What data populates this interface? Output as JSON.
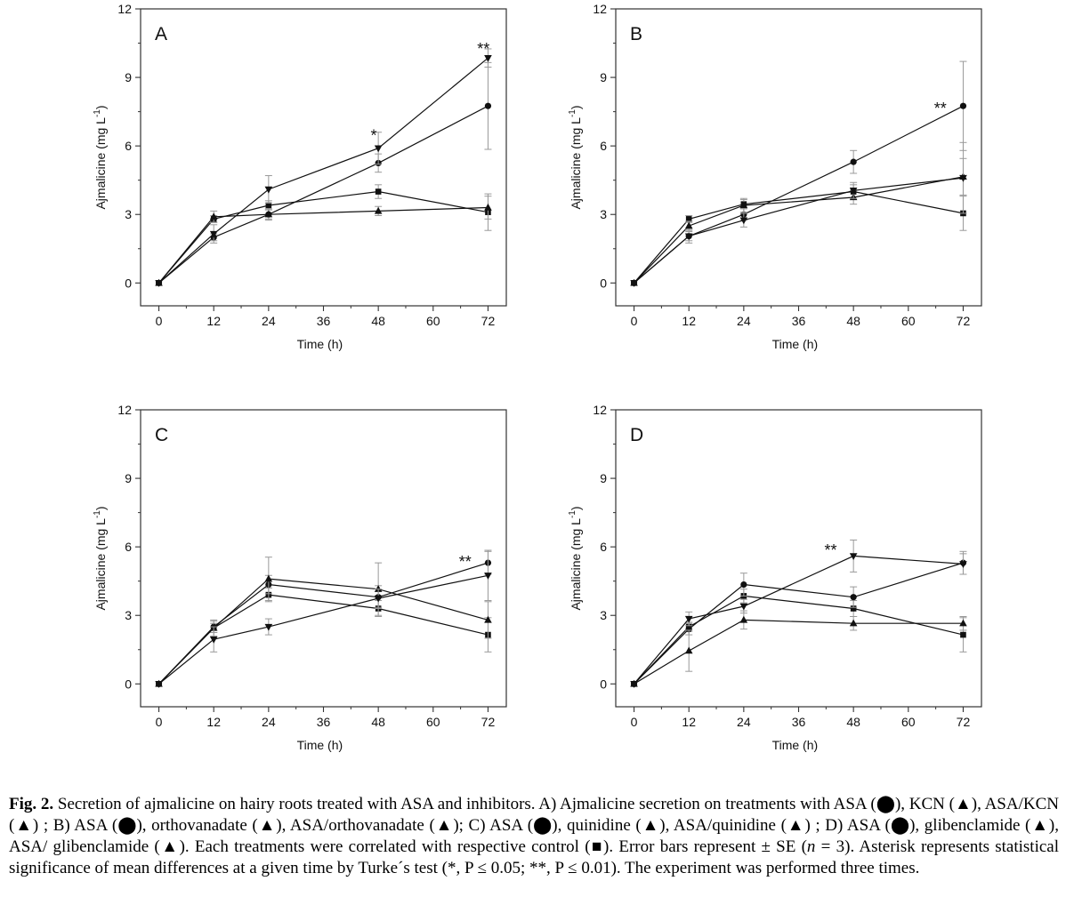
{
  "figure": {
    "label": "Fig. 2.",
    "caption_parts": [
      " Secretion of ajmalicine on hairy roots treated with ASA and inhibitors. A) Ajmalicine secretion on treatments with ASA (",
      "), KCN (",
      "), ASA/KCN (",
      ") ; B) ASA (",
      "), orthovanadate (",
      "), ASA/orthovanadate (",
      "); C) ASA (",
      "), quinidine (",
      "), ASA/quinidine (",
      ") ; D) ASA (",
      "), glibenclamide (",
      "), ASA/ glibenclamide (",
      "). Each treatments were correlated with respective control (",
      "). Error bars represent ± SE (",
      " = 3). Asterisk represents statistical significance of mean differences at a given time by Turke´s test (*, P ≤ 0.05; **, P ≤ 0.01). The experiment was performed three times."
    ],
    "caption_n": "n",
    "symbols": {
      "circle": "⬤",
      "triangle": "▲",
      "square": "■"
    }
  },
  "chart_data": [
    {
      "type": "line",
      "panel": "A",
      "xlabel": "Time (h)",
      "ylabel": "Ajmalicine (mg L-1)",
      "xlim": [
        -4,
        76
      ],
      "ylim": [
        -1,
        12
      ],
      "xticks": [
        0,
        12,
        24,
        36,
        48,
        60,
        72
      ],
      "yticks": [
        0,
        3,
        6,
        9,
        12
      ],
      "x": [
        0,
        12,
        24,
        48,
        72
      ],
      "series": [
        {
          "name": "control",
          "marker": "square",
          "values": [
            0,
            2.8,
            3.4,
            4.0,
            3.1
          ],
          "errors": [
            0,
            0.15,
            0.2,
            0.3,
            0.8
          ]
        },
        {
          "name": "ASA",
          "marker": "circle",
          "values": [
            0,
            2.0,
            3.0,
            5.25,
            7.75
          ],
          "errors": [
            0,
            0.15,
            0.25,
            0.4,
            1.9
          ]
        },
        {
          "name": "KCN",
          "marker": "triangle-up",
          "values": [
            0,
            2.9,
            3.0,
            3.15,
            3.3
          ],
          "errors": [
            0,
            0.25,
            0.2,
            0.2,
            0.5
          ]
        },
        {
          "name": "ASA/KCN",
          "marker": "triangle-down",
          "values": [
            0,
            2.15,
            4.1,
            5.9,
            9.85
          ],
          "errors": [
            0,
            0.4,
            0.6,
            0.7,
            0.4
          ]
        }
      ],
      "annotations": [
        {
          "text": "*",
          "x": 47,
          "y": 6.45
        },
        {
          "text": "**",
          "x": 71,
          "y": 10.25
        }
      ]
    },
    {
      "type": "line",
      "panel": "B",
      "xlabel": "Time (h)",
      "ylabel": "Ajmalicine (mg L-1)",
      "xlim": [
        -4,
        76
      ],
      "ylim": [
        -1,
        12
      ],
      "xticks": [
        0,
        12,
        24,
        36,
        48,
        60,
        72
      ],
      "yticks": [
        0,
        3,
        6,
        9,
        12
      ],
      "x": [
        0,
        12,
        24,
        48,
        72
      ],
      "series": [
        {
          "name": "control",
          "marker": "square",
          "values": [
            0,
            2.8,
            3.45,
            4.0,
            3.05
          ],
          "errors": [
            0,
            0.15,
            0.2,
            0.3,
            0.75
          ]
        },
        {
          "name": "ASA",
          "marker": "circle",
          "values": [
            0,
            2.05,
            3.0,
            5.3,
            7.75
          ],
          "errors": [
            0,
            0.2,
            0.25,
            0.5,
            1.95
          ]
        },
        {
          "name": "orthovanadate",
          "marker": "triangle-up",
          "values": [
            0,
            2.5,
            3.4,
            3.75,
            4.65
          ],
          "errors": [
            0,
            0.2,
            0.3,
            0.3,
            0.8
          ]
        },
        {
          "name": "ASA/orthovanadate",
          "marker": "triangle-down",
          "values": [
            0,
            2.05,
            2.75,
            4.05,
            4.6
          ],
          "errors": [
            0,
            0.3,
            0.3,
            0.35,
            1.55
          ]
        }
      ],
      "annotations": [
        {
          "text": "**",
          "x": 67,
          "y": 7.65
        }
      ]
    },
    {
      "type": "line",
      "panel": "C",
      "xlabel": "Time (h)",
      "ylabel": "Ajmalicine (mg L-1)",
      "xlim": [
        -4,
        76
      ],
      "ylim": [
        -1,
        12
      ],
      "xticks": [
        0,
        12,
        24,
        36,
        48,
        60,
        72
      ],
      "yticks": [
        0,
        3,
        6,
        9,
        12
      ],
      "x": [
        0,
        12,
        24,
        48,
        72
      ],
      "series": [
        {
          "name": "control",
          "marker": "square",
          "values": [
            0,
            2.45,
            3.9,
            3.3,
            2.15
          ],
          "errors": [
            0,
            0.2,
            0.3,
            0.35,
            0.75
          ]
        },
        {
          "name": "ASA",
          "marker": "circle",
          "values": [
            0,
            2.5,
            4.35,
            3.8,
            5.3
          ],
          "errors": [
            0,
            0.25,
            0.4,
            0.5,
            0.5
          ]
        },
        {
          "name": "quinidine",
          "marker": "triangle-up",
          "values": [
            0,
            2.45,
            4.6,
            4.15,
            2.8
          ],
          "errors": [
            0,
            0.35,
            0.95,
            1.15,
            0.8
          ]
        },
        {
          "name": "ASA/quinidine",
          "marker": "triangle-down",
          "values": [
            0,
            1.95,
            2.5,
            3.75,
            4.75
          ],
          "errors": [
            0,
            0.55,
            0.35,
            0.4,
            1.1
          ]
        }
      ],
      "annotations": [
        {
          "text": "**",
          "x": 67,
          "y": 5.35
        }
      ]
    },
    {
      "type": "line",
      "panel": "D",
      "xlabel": "Time (h)",
      "ylabel": "Ajmalicine (mg L-1)",
      "xlim": [
        -4,
        76
      ],
      "ylim": [
        -1,
        12
      ],
      "xticks": [
        0,
        12,
        24,
        36,
        48,
        60,
        72
      ],
      "yticks": [
        0,
        3,
        6,
        9,
        12
      ],
      "x": [
        0,
        12,
        24,
        48,
        72
      ],
      "series": [
        {
          "name": "control",
          "marker": "square",
          "values": [
            0,
            2.5,
            3.85,
            3.3,
            2.15
          ],
          "errors": [
            0,
            0.2,
            0.3,
            0.35,
            0.75
          ]
        },
        {
          "name": "ASA",
          "marker": "circle",
          "values": [
            0,
            2.4,
            4.35,
            3.8,
            5.3
          ],
          "errors": [
            0,
            0.25,
            0.5,
            0.45,
            0.5
          ]
        },
        {
          "name": "glibenclamide",
          "marker": "triangle-up",
          "values": [
            0,
            1.45,
            2.8,
            2.65,
            2.65
          ],
          "errors": [
            0,
            0.9,
            0.4,
            0.3,
            0.3
          ]
        },
        {
          "name": "ASA/glibenclamide",
          "marker": "triangle-down",
          "values": [
            0,
            2.85,
            3.4,
            5.6,
            5.25
          ],
          "errors": [
            0,
            0.3,
            0.3,
            0.7,
            0.45
          ]
        }
      ],
      "annotations": [
        {
          "text": "**",
          "x": 43,
          "y": 5.85
        }
      ]
    }
  ]
}
